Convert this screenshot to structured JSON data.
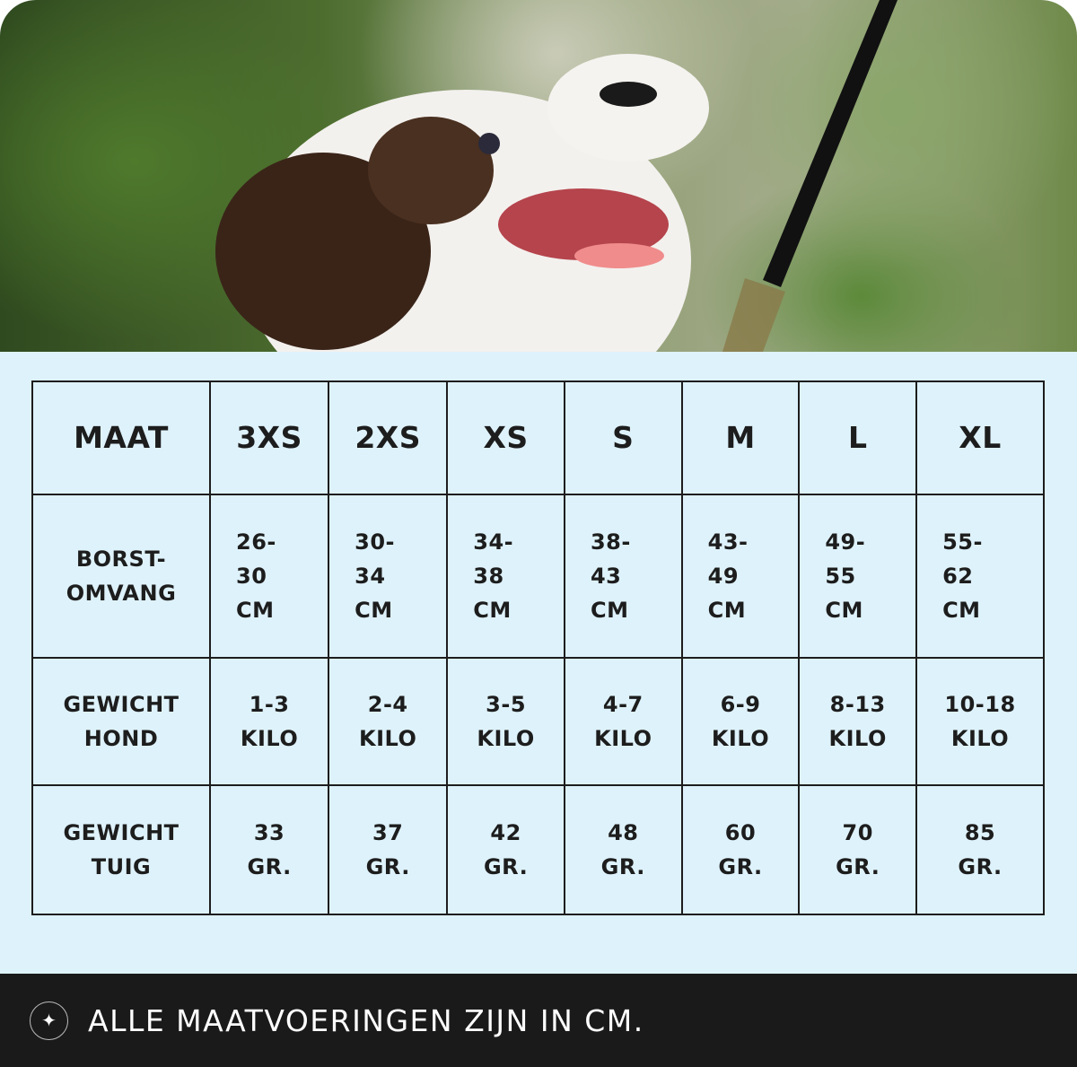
{
  "header_row": [
    "MAAT",
    "3XS",
    "2XS",
    "XS",
    "S",
    "M",
    "L",
    "XL"
  ],
  "rows": [
    {
      "label": [
        "BORST-",
        "OMVANG"
      ],
      "cells": [
        [
          "26-",
          "30",
          "CM"
        ],
        [
          "30-",
          "34",
          "CM"
        ],
        [
          "34-",
          "38",
          "CM"
        ],
        [
          "38-",
          "43",
          "CM"
        ],
        [
          "43-",
          "49",
          "CM"
        ],
        [
          "49-",
          "55",
          "CM"
        ],
        [
          "55-",
          "62",
          "CM"
        ]
      ]
    },
    {
      "label": [
        "GEWICHT",
        "HOND"
      ],
      "cells": [
        [
          "1-3",
          "KILO"
        ],
        [
          "2-4",
          "KILO"
        ],
        [
          "3-5",
          "KILO"
        ],
        [
          "4-7",
          "KILO"
        ],
        [
          "6-9",
          "KILO"
        ],
        [
          "8-13",
          "KILO"
        ],
        [
          "10-18",
          "KILO"
        ]
      ]
    },
    {
      "label": [
        "GEWICHT",
        "TUIG"
      ],
      "cells": [
        [
          "33",
          "GR."
        ],
        [
          "37",
          "GR."
        ],
        [
          "42",
          "GR."
        ],
        [
          "48",
          "GR."
        ],
        [
          "60",
          "GR."
        ],
        [
          "70",
          "GR."
        ],
        [
          "85",
          "GR."
        ]
      ]
    }
  ],
  "footer": {
    "icon": "sparkle-icon",
    "note": "ALLE MAATVOERINGEN ZIJN IN CM."
  },
  "colors": {
    "panel": "#def2fb",
    "footer": "#1b1a1a",
    "border": "#1d1d1d"
  }
}
